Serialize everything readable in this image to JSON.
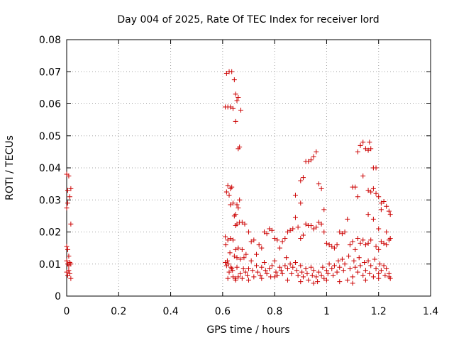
{
  "chart_data": {
    "type": "scatter",
    "title": "Day 004 of 2025, Rate Of TEC Index for receiver lord",
    "xlabel": "GPS time / hours",
    "ylabel": "ROTI / TECUs",
    "xlim": [
      0,
      1.4
    ],
    "ylim": [
      0,
      0.08
    ],
    "xticks": [
      "0",
      "0.2",
      "0.4",
      "0.6",
      "0.8",
      "1",
      "1.2",
      "1.4"
    ],
    "yticks": [
      "0",
      "0.01",
      "0.02",
      "0.03",
      "0.04",
      "0.05",
      "0.06",
      "0.07",
      "0.08"
    ],
    "grid": true,
    "marker": "+",
    "color": "#cc0000",
    "points": [
      [
        0.0,
        0.038
      ],
      [
        0.004,
        0.033
      ],
      [
        0.008,
        0.0375
      ],
      [
        0.012,
        0.031
      ],
      [
        0.0,
        0.0275
      ],
      [
        0.004,
        0.029
      ],
      [
        0.016,
        0.0335
      ],
      [
        0.016,
        0.0225
      ],
      [
        0.0,
        0.0155
      ],
      [
        0.004,
        0.0145
      ],
      [
        0.008,
        0.0125
      ],
      [
        0.0,
        0.011
      ],
      [
        0.004,
        0.01
      ],
      [
        0.008,
        0.0095
      ],
      [
        0.012,
        0.0105
      ],
      [
        0.016,
        0.01
      ],
      [
        0.0,
        0.0075
      ],
      [
        0.004,
        0.0065
      ],
      [
        0.008,
        0.008
      ],
      [
        0.012,
        0.007
      ],
      [
        0.016,
        0.0055
      ],
      [
        0.61,
        0.059
      ],
      [
        0.62,
        0.059
      ],
      [
        0.63,
        0.059
      ],
      [
        0.64,
        0.0585
      ],
      [
        0.615,
        0.0695
      ],
      [
        0.625,
        0.07
      ],
      [
        0.635,
        0.07
      ],
      [
        0.645,
        0.0675
      ],
      [
        0.65,
        0.063
      ],
      [
        0.655,
        0.061
      ],
      [
        0.66,
        0.062
      ],
      [
        0.67,
        0.058
      ],
      [
        0.65,
        0.0545
      ],
      [
        0.66,
        0.046
      ],
      [
        0.665,
        0.0465
      ],
      [
        0.615,
        0.0325
      ],
      [
        0.62,
        0.0345
      ],
      [
        0.625,
        0.0315
      ],
      [
        0.63,
        0.0335
      ],
      [
        0.635,
        0.034
      ],
      [
        0.64,
        0.029
      ],
      [
        0.645,
        0.025
      ],
      [
        0.65,
        0.0255
      ],
      [
        0.655,
        0.0285
      ],
      [
        0.66,
        0.0275
      ],
      [
        0.665,
        0.03
      ],
      [
        0.63,
        0.0285
      ],
      [
        0.655,
        0.0225
      ],
      [
        0.665,
        0.023
      ],
      [
        0.675,
        0.023
      ],
      [
        0.685,
        0.0225
      ],
      [
        0.61,
        0.0185
      ],
      [
        0.62,
        0.0175
      ],
      [
        0.63,
        0.018
      ],
      [
        0.64,
        0.0175
      ],
      [
        0.65,
        0.022
      ],
      [
        0.612,
        0.016
      ],
      [
        0.618,
        0.011
      ],
      [
        0.622,
        0.01
      ],
      [
        0.628,
        0.0135
      ],
      [
        0.632,
        0.009
      ],
      [
        0.638,
        0.008
      ],
      [
        0.645,
        0.0125
      ],
      [
        0.65,
        0.0145
      ],
      [
        0.655,
        0.012
      ],
      [
        0.66,
        0.015
      ],
      [
        0.668,
        0.0115
      ],
      [
        0.675,
        0.0145
      ],
      [
        0.682,
        0.012
      ],
      [
        0.69,
        0.013
      ],
      [
        0.7,
        0.02
      ],
      [
        0.71,
        0.017
      ],
      [
        0.72,
        0.0175
      ],
      [
        0.73,
        0.013
      ],
      [
        0.74,
        0.016
      ],
      [
        0.75,
        0.015
      ],
      [
        0.76,
        0.02
      ],
      [
        0.77,
        0.0195
      ],
      [
        0.78,
        0.021
      ],
      [
        0.79,
        0.0205
      ],
      [
        0.8,
        0.018
      ],
      [
        0.81,
        0.0175
      ],
      [
        0.82,
        0.015
      ],
      [
        0.83,
        0.017
      ],
      [
        0.84,
        0.018
      ],
      [
        0.85,
        0.02
      ],
      [
        0.86,
        0.0205
      ],
      [
        0.87,
        0.021
      ],
      [
        0.88,
        0.0245
      ],
      [
        0.89,
        0.0215
      ],
      [
        0.9,
        0.018
      ],
      [
        0.91,
        0.019
      ],
      [
        0.92,
        0.0225
      ],
      [
        0.93,
        0.022
      ],
      [
        0.94,
        0.022
      ],
      [
        0.95,
        0.021
      ],
      [
        0.96,
        0.0215
      ],
      [
        0.97,
        0.023
      ],
      [
        0.98,
        0.0225
      ],
      [
        0.99,
        0.02
      ],
      [
        1.0,
        0.0165
      ],
      [
        1.01,
        0.016
      ],
      [
        1.02,
        0.0155
      ],
      [
        1.03,
        0.015
      ],
      [
        1.04,
        0.016
      ],
      [
        1.05,
        0.02
      ],
      [
        1.06,
        0.0195
      ],
      [
        1.07,
        0.02
      ],
      [
        1.08,
        0.024
      ],
      [
        1.09,
        0.016
      ],
      [
        1.1,
        0.017
      ],
      [
        1.11,
        0.0145
      ],
      [
        1.12,
        0.018
      ],
      [
        1.13,
        0.0165
      ],
      [
        1.14,
        0.0175
      ],
      [
        1.15,
        0.016
      ],
      [
        1.16,
        0.0165
      ],
      [
        1.17,
        0.0175
      ],
      [
        1.18,
        0.024
      ],
      [
        1.19,
        0.0155
      ],
      [
        1.2,
        0.0145
      ],
      [
        1.21,
        0.017
      ],
      [
        1.22,
        0.0165
      ],
      [
        1.23,
        0.016
      ],
      [
        1.24,
        0.0175
      ],
      [
        1.245,
        0.018
      ],
      [
        0.61,
        0.0105
      ],
      [
        0.615,
        0.0095
      ],
      [
        0.625,
        0.0075
      ],
      [
        0.635,
        0.0085
      ],
      [
        0.64,
        0.006
      ],
      [
        0.648,
        0.0055
      ],
      [
        0.655,
        0.009
      ],
      [
        0.66,
        0.006
      ],
      [
        0.668,
        0.007
      ],
      [
        0.675,
        0.0055
      ],
      [
        0.68,
        0.0085
      ],
      [
        0.688,
        0.0075
      ],
      [
        0.695,
        0.0065
      ],
      [
        0.7,
        0.0085
      ],
      [
        0.71,
        0.011
      ],
      [
        0.715,
        0.008
      ],
      [
        0.72,
        0.006
      ],
      [
        0.73,
        0.0095
      ],
      [
        0.735,
        0.0075
      ],
      [
        0.745,
        0.0065
      ],
      [
        0.75,
        0.009
      ],
      [
        0.76,
        0.0105
      ],
      [
        0.765,
        0.008
      ],
      [
        0.77,
        0.007
      ],
      [
        0.78,
        0.0085
      ],
      [
        0.785,
        0.006
      ],
      [
        0.79,
        0.0095
      ],
      [
        0.8,
        0.011
      ],
      [
        0.805,
        0.0075
      ],
      [
        0.81,
        0.0065
      ],
      [
        0.82,
        0.009
      ],
      [
        0.825,
        0.008
      ],
      [
        0.83,
        0.007
      ],
      [
        0.84,
        0.0095
      ],
      [
        0.845,
        0.012
      ],
      [
        0.85,
        0.0085
      ],
      [
        0.86,
        0.01
      ],
      [
        0.865,
        0.007
      ],
      [
        0.87,
        0.009
      ],
      [
        0.88,
        0.0105
      ],
      [
        0.885,
        0.008
      ],
      [
        0.89,
        0.0065
      ],
      [
        0.9,
        0.0095
      ],
      [
        0.905,
        0.0075
      ],
      [
        0.91,
        0.006
      ],
      [
        0.92,
        0.0085
      ],
      [
        0.925,
        0.007
      ],
      [
        0.93,
        0.005
      ],
      [
        0.94,
        0.009
      ],
      [
        0.945,
        0.0065
      ],
      [
        0.95,
        0.008
      ],
      [
        0.96,
        0.006
      ],
      [
        0.965,
        0.0045
      ],
      [
        0.97,
        0.0075
      ],
      [
        0.98,
        0.0065
      ],
      [
        0.985,
        0.009
      ],
      [
        0.99,
        0.0055
      ],
      [
        1.0,
        0.008
      ],
      [
        1.005,
        0.007
      ],
      [
        1.01,
        0.01
      ],
      [
        1.02,
        0.0085
      ],
      [
        1.025,
        0.0065
      ],
      [
        1.03,
        0.0095
      ],
      [
        1.04,
        0.0075
      ],
      [
        1.045,
        0.011
      ],
      [
        1.05,
        0.009
      ],
      [
        1.06,
        0.0115
      ],
      [
        1.065,
        0.008
      ],
      [
        1.07,
        0.01
      ],
      [
        1.08,
        0.005
      ],
      [
        1.085,
        0.0125
      ],
      [
        1.09,
        0.0085
      ],
      [
        1.1,
        0.006
      ],
      [
        1.105,
        0.011
      ],
      [
        1.11,
        0.009
      ],
      [
        1.12,
        0.0075
      ],
      [
        1.125,
        0.012
      ],
      [
        1.13,
        0.0095
      ],
      [
        1.14,
        0.0065
      ],
      [
        1.145,
        0.0105
      ],
      [
        1.15,
        0.008
      ],
      [
        1.16,
        0.011
      ],
      [
        1.165,
        0.007
      ],
      [
        1.17,
        0.0095
      ],
      [
        1.18,
        0.006
      ],
      [
        1.185,
        0.0115
      ],
      [
        1.19,
        0.0085
      ],
      [
        1.2,
        0.007
      ],
      [
        1.205,
        0.01
      ],
      [
        1.21,
        0.008
      ],
      [
        1.22,
        0.0095
      ],
      [
        1.225,
        0.0065
      ],
      [
        1.23,
        0.0085
      ],
      [
        1.24,
        0.007
      ],
      [
        1.245,
        0.0055
      ],
      [
        0.62,
        0.0055
      ],
      [
        0.65,
        0.005
      ],
      [
        0.7,
        0.005
      ],
      [
        0.75,
        0.0055
      ],
      [
        0.8,
        0.006
      ],
      [
        0.85,
        0.005
      ],
      [
        0.9,
        0.0045
      ],
      [
        0.95,
        0.004
      ],
      [
        1.0,
        0.005
      ],
      [
        1.05,
        0.0045
      ],
      [
        1.1,
        0.004
      ],
      [
        1.15,
        0.005
      ],
      [
        1.2,
        0.0055
      ],
      [
        1.24,
        0.006
      ],
      [
        0.9,
        0.036
      ],
      [
        0.91,
        0.037
      ],
      [
        0.92,
        0.042
      ],
      [
        0.93,
        0.042
      ],
      [
        0.94,
        0.0425
      ],
      [
        0.95,
        0.0435
      ],
      [
        0.96,
        0.045
      ],
      [
        0.97,
        0.035
      ],
      [
        0.98,
        0.0335
      ],
      [
        0.88,
        0.0315
      ],
      [
        0.99,
        0.027
      ],
      [
        0.9,
        0.029
      ],
      [
        1.1,
        0.034
      ],
      [
        1.11,
        0.034
      ],
      [
        1.12,
        0.045
      ],
      [
        1.13,
        0.047
      ],
      [
        1.14,
        0.048
      ],
      [
        1.15,
        0.046
      ],
      [
        1.16,
        0.0455
      ],
      [
        1.17,
        0.046
      ],
      [
        1.165,
        0.048
      ],
      [
        1.18,
        0.04
      ],
      [
        1.19,
        0.04
      ],
      [
        1.14,
        0.0375
      ],
      [
        1.16,
        0.033
      ],
      [
        1.17,
        0.0325
      ],
      [
        1.18,
        0.0335
      ],
      [
        1.19,
        0.032
      ],
      [
        1.2,
        0.031
      ],
      [
        1.21,
        0.029
      ],
      [
        1.22,
        0.0295
      ],
      [
        1.23,
        0.028
      ],
      [
        1.24,
        0.0265
      ],
      [
        1.245,
        0.0255
      ],
      [
        1.21,
        0.027
      ],
      [
        1.12,
        0.031
      ],
      [
        1.16,
        0.0255
      ],
      [
        1.2,
        0.021
      ],
      [
        1.23,
        0.02
      ]
    ]
  }
}
